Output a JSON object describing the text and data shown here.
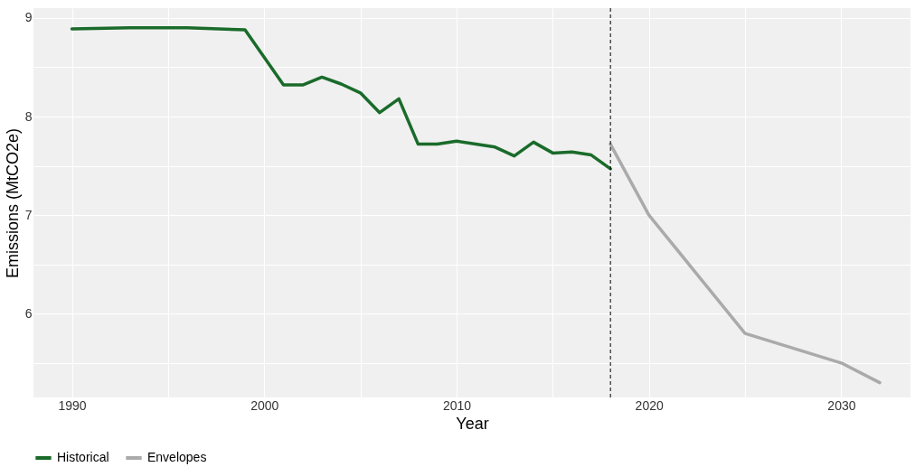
{
  "chart_data": {
    "type": "line",
    "xlabel": "Year",
    "ylabel": "Emissions (MtCO2e)",
    "xlim": [
      1988,
      2033.6
    ],
    "ylim": [
      5.15,
      9.1
    ],
    "xticks": [
      1990,
      {
        "value": 1995,
        "label": null
      },
      2000,
      {
        "value": 2005,
        "label": null
      },
      2010,
      {
        "value": 2015,
        "label": null
      },
      2020,
      {
        "value": 2025,
        "label": null
      },
      2030
    ],
    "yticks": [
      {
        "value": 5.5,
        "label": null
      },
      6,
      {
        "value": 6.5,
        "label": null
      },
      7,
      {
        "value": 7.5,
        "label": null
      },
      8,
      {
        "value": 8.5,
        "label": null
      },
      9
    ],
    "grid": true,
    "legend": "bottom",
    "line_style": "solid",
    "ref_lines": [
      {
        "axis": "x",
        "value": 2018,
        "color": "#000000",
        "line_style": "dashed"
      }
    ],
    "series": [
      {
        "name": "Historical",
        "color": "#1a6b2a",
        "x": [
          1990,
          1993,
          1996,
          1999,
          2000,
          2001,
          2002,
          2003,
          2004,
          2005,
          2006,
          2007,
          2008,
          2009,
          2010,
          2011,
          2012,
          2013,
          2014,
          2015,
          2016,
          2017,
          2018
        ],
        "values": [
          8.89,
          8.9,
          8.9,
          8.88,
          8.6,
          8.32,
          8.32,
          8.4,
          8.33,
          8.24,
          8.04,
          8.18,
          7.72,
          7.72,
          7.75,
          7.72,
          7.69,
          7.6,
          7.74,
          7.63,
          7.64,
          7.61,
          7.47
        ]
      },
      {
        "name": "Envelopes",
        "color": "#aaaaaa",
        "x": [
          2018,
          2020,
          2025,
          2030,
          2032
        ],
        "values": [
          7.72,
          7.0,
          5.8,
          5.5,
          5.3
        ]
      }
    ]
  }
}
